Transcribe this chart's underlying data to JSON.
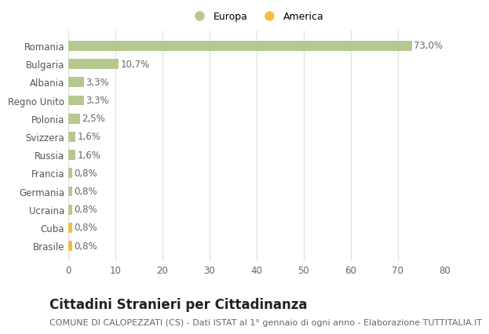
{
  "categories": [
    "Brasile",
    "Cuba",
    "Ucraina",
    "Germania",
    "Francia",
    "Russia",
    "Svizzera",
    "Polonia",
    "Regno Unito",
    "Albania",
    "Bulgaria",
    "Romania"
  ],
  "values": [
    0.8,
    0.8,
    0.8,
    0.8,
    0.8,
    1.6,
    1.6,
    2.5,
    3.3,
    3.3,
    10.7,
    73.0
  ],
  "colors": [
    "#f0c040",
    "#f0c040",
    "#b5c98e",
    "#b5c98e",
    "#b5c98e",
    "#b5c98e",
    "#b5c98e",
    "#b5c98e",
    "#b5c98e",
    "#b5c98e",
    "#b5c98e",
    "#b5c98e"
  ],
  "labels": [
    "0,8%",
    "0,8%",
    "0,8%",
    "0,8%",
    "0,8%",
    "1,6%",
    "1,6%",
    "2,5%",
    "3,3%",
    "3,3%",
    "10,7%",
    "73,0%"
  ],
  "title": "Cittadini Stranieri per Cittadinanza",
  "subtitle": "COMUNE DI CALOPEZZATI (CS) - Dati ISTAT al 1° gennaio di ogni anno - Elaborazione TUTTITALIA.IT",
  "xlim": [
    0,
    80
  ],
  "xticks": [
    0,
    10,
    20,
    30,
    40,
    50,
    60,
    70,
    80
  ],
  "legend_europa_color": "#b5c98e",
  "legend_america_color": "#f0c040",
  "background_color": "#ffffff",
  "grid_color": "#dddddd",
  "bar_height": 0.55,
  "title_fontsize": 12,
  "subtitle_fontsize": 8,
  "tick_fontsize": 8.5,
  "label_fontsize": 8.5
}
